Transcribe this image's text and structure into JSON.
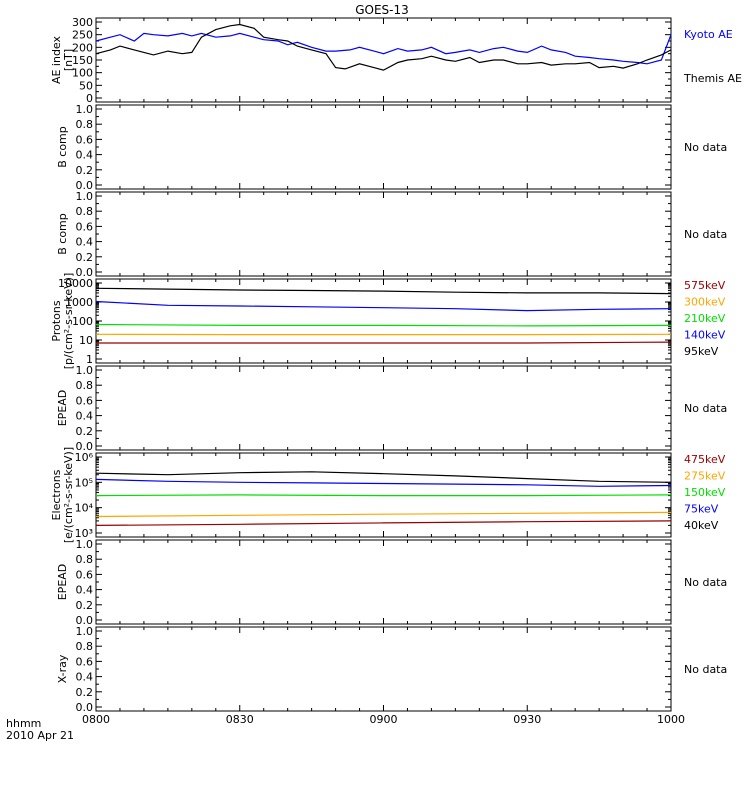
{
  "title": "GOES-13",
  "time_axis": {
    "label_line1": "hhmm",
    "label_line2": "2010 Apr 21",
    "ticks": [
      "0800",
      "0830",
      "0900",
      "0930",
      "1000"
    ]
  },
  "colors": {
    "axis": "#000000",
    "black": "#000000",
    "blue": "#0000ff",
    "green": "#00e000",
    "orange": "#ffa500",
    "darkred": "#990000"
  },
  "chart_data": [
    {
      "type": "line",
      "panel": "ae-index",
      "ylabel_lines": [
        "AE index",
        "[nT]"
      ],
      "ylim": [
        0,
        300
      ],
      "yticks": [
        "0",
        "50",
        "100",
        "150",
        "200",
        "250",
        "300"
      ],
      "series": [
        {
          "name": "Kyoto AE",
          "color": "#0000ff",
          "x": [
            0,
            3,
            5,
            8,
            10,
            12,
            15,
            18,
            20,
            22,
            25,
            28,
            30,
            33,
            35,
            38,
            40,
            42,
            45,
            48,
            50,
            53,
            55,
            58,
            60,
            63,
            65,
            68,
            70,
            73,
            75,
            78,
            80,
            83,
            85,
            88,
            90,
            93,
            95,
            98,
            100,
            103,
            105,
            108,
            110,
            113,
            115,
            118,
            120
          ],
          "y": [
            225,
            240,
            250,
            225,
            255,
            250,
            245,
            255,
            245,
            255,
            240,
            245,
            255,
            240,
            230,
            225,
            210,
            220,
            200,
            185,
            185,
            190,
            200,
            185,
            175,
            195,
            185,
            190,
            200,
            175,
            180,
            190,
            180,
            195,
            200,
            185,
            180,
            205,
            190,
            180,
            165,
            160,
            155,
            150,
            145,
            140,
            135,
            150,
            250
          ]
        },
        {
          "name": "Themis AE",
          "color": "#000000",
          "x": [
            0,
            3,
            5,
            8,
            10,
            12,
            15,
            18,
            20,
            22,
            25,
            28,
            30,
            33,
            35,
            38,
            40,
            42,
            45,
            48,
            50,
            52,
            55,
            58,
            60,
            63,
            65,
            68,
            70,
            73,
            75,
            78,
            80,
            83,
            85,
            88,
            90,
            93,
            95,
            98,
            100,
            103,
            105,
            108,
            110,
            113,
            115,
            118,
            120
          ],
          "y": [
            175,
            190,
            205,
            190,
            180,
            170,
            185,
            175,
            180,
            240,
            270,
            285,
            290,
            275,
            240,
            230,
            225,
            205,
            190,
            175,
            120,
            115,
            135,
            120,
            110,
            140,
            150,
            155,
            165,
            150,
            145,
            160,
            140,
            150,
            150,
            135,
            135,
            140,
            130,
            135,
            135,
            140,
            120,
            125,
            118,
            135,
            150,
            170,
            190
          ]
        }
      ]
    },
    {
      "type": "line",
      "panel": "b-comp-1",
      "ylabel_lines": [
        "B comp"
      ],
      "ylim": [
        0,
        1
      ],
      "yticks": [
        "0.0",
        "0.2",
        "0.4",
        "0.6",
        "0.8",
        "1.0"
      ],
      "status": "No data",
      "series": []
    },
    {
      "type": "line",
      "panel": "b-comp-2",
      "ylabel_lines": [
        "B comp"
      ],
      "ylim": [
        0,
        1
      ],
      "yticks": [
        "0.0",
        "0.2",
        "0.4",
        "0.6",
        "0.8",
        "1.0"
      ],
      "status": "No data",
      "series": []
    },
    {
      "type": "line",
      "panel": "protons",
      "scale": "log",
      "ylabel_lines": [
        "Protons",
        "[p/(cm²-s-sr-keV)]"
      ],
      "ylim": [
        1,
        20000
      ],
      "yticks": [
        "1",
        "10",
        "100",
        "1000",
        "10000"
      ],
      "series": [
        {
          "name": "575keV",
          "color": "#990000",
          "x": [
            0,
            30,
            60,
            90,
            120
          ],
          "y": [
            8,
            8,
            8,
            8,
            9
          ]
        },
        {
          "name": "300keV",
          "color": "#ffa500",
          "x": [
            0,
            30,
            60,
            90,
            120
          ],
          "y": [
            25,
            24,
            24,
            24,
            25
          ]
        },
        {
          "name": "210keV",
          "color": "#00e000",
          "x": [
            0,
            30,
            60,
            90,
            120
          ],
          "y": [
            90,
            80,
            80,
            75,
            80
          ]
        },
        {
          "name": "140keV",
          "color": "#0000ff",
          "x": [
            0,
            15,
            30,
            45,
            60,
            75,
            90,
            105,
            120
          ],
          "y": [
            1800,
            1100,
            1000,
            900,
            800,
            700,
            550,
            650,
            700
          ]
        },
        {
          "name": "95keV",
          "color": "#000000",
          "x": [
            0,
            15,
            30,
            45,
            60,
            75,
            90,
            105,
            120
          ],
          "y": [
            10000,
            9000,
            8000,
            7500,
            7000,
            6000,
            5500,
            5500,
            5000
          ]
        }
      ]
    },
    {
      "type": "line",
      "panel": "epead-1",
      "ylabel_lines": [
        "EPEAD"
      ],
      "ylim": [
        0,
        1
      ],
      "yticks": [
        "0.0",
        "0.2",
        "0.4",
        "0.6",
        "0.8",
        "1.0"
      ],
      "status": "No data",
      "series": []
    },
    {
      "type": "line",
      "panel": "electrons",
      "scale": "log",
      "ylabel_lines": [
        "Electrons",
        "[e/(cm²-s-sr-keV)]"
      ],
      "ylim": [
        1000,
        1000000
      ],
      "yticks": [
        "10³",
        "10⁴",
        "10⁵",
        "10⁶"
      ],
      "series": [
        {
          "name": "475keV",
          "color": "#990000",
          "x": [
            0,
            30,
            60,
            90,
            120
          ],
          "y": [
            2000,
            2200,
            2500,
            2800,
            3000
          ]
        },
        {
          "name": "275keV",
          "color": "#ffa500",
          "x": [
            0,
            30,
            60,
            90,
            120
          ],
          "y": [
            4500,
            5000,
            5500,
            6000,
            6500
          ]
        },
        {
          "name": "150keV",
          "color": "#00e000",
          "x": [
            0,
            30,
            60,
            90,
            120
          ],
          "y": [
            30000,
            32000,
            30000,
            30000,
            32000
          ]
        },
        {
          "name": "75keV",
          "color": "#0000ff",
          "x": [
            0,
            15,
            30,
            45,
            60,
            75,
            90,
            105,
            120
          ],
          "y": [
            130000,
            110000,
            100000,
            95000,
            90000,
            85000,
            80000,
            70000,
            75000
          ]
        },
        {
          "name": "40keV",
          "color": "#000000",
          "x": [
            0,
            15,
            30,
            45,
            60,
            75,
            90,
            105,
            120
          ],
          "y": [
            230000,
            200000,
            240000,
            260000,
            220000,
            180000,
            140000,
            110000,
            100000
          ]
        }
      ]
    },
    {
      "type": "line",
      "panel": "epead-2",
      "ylabel_lines": [
        "EPEAD"
      ],
      "ylim": [
        0,
        1
      ],
      "yticks": [
        "0.0",
        "0.2",
        "0.4",
        "0.6",
        "0.8",
        "1.0"
      ],
      "status": "No data",
      "series": []
    },
    {
      "type": "line",
      "panel": "x-ray",
      "ylabel_lines": [
        "X-ray"
      ],
      "ylim": [
        0,
        1
      ],
      "yticks": [
        "0.0",
        "0.2",
        "0.4",
        "0.6",
        "0.8",
        "1.0"
      ],
      "status": "No data",
      "series": []
    }
  ]
}
